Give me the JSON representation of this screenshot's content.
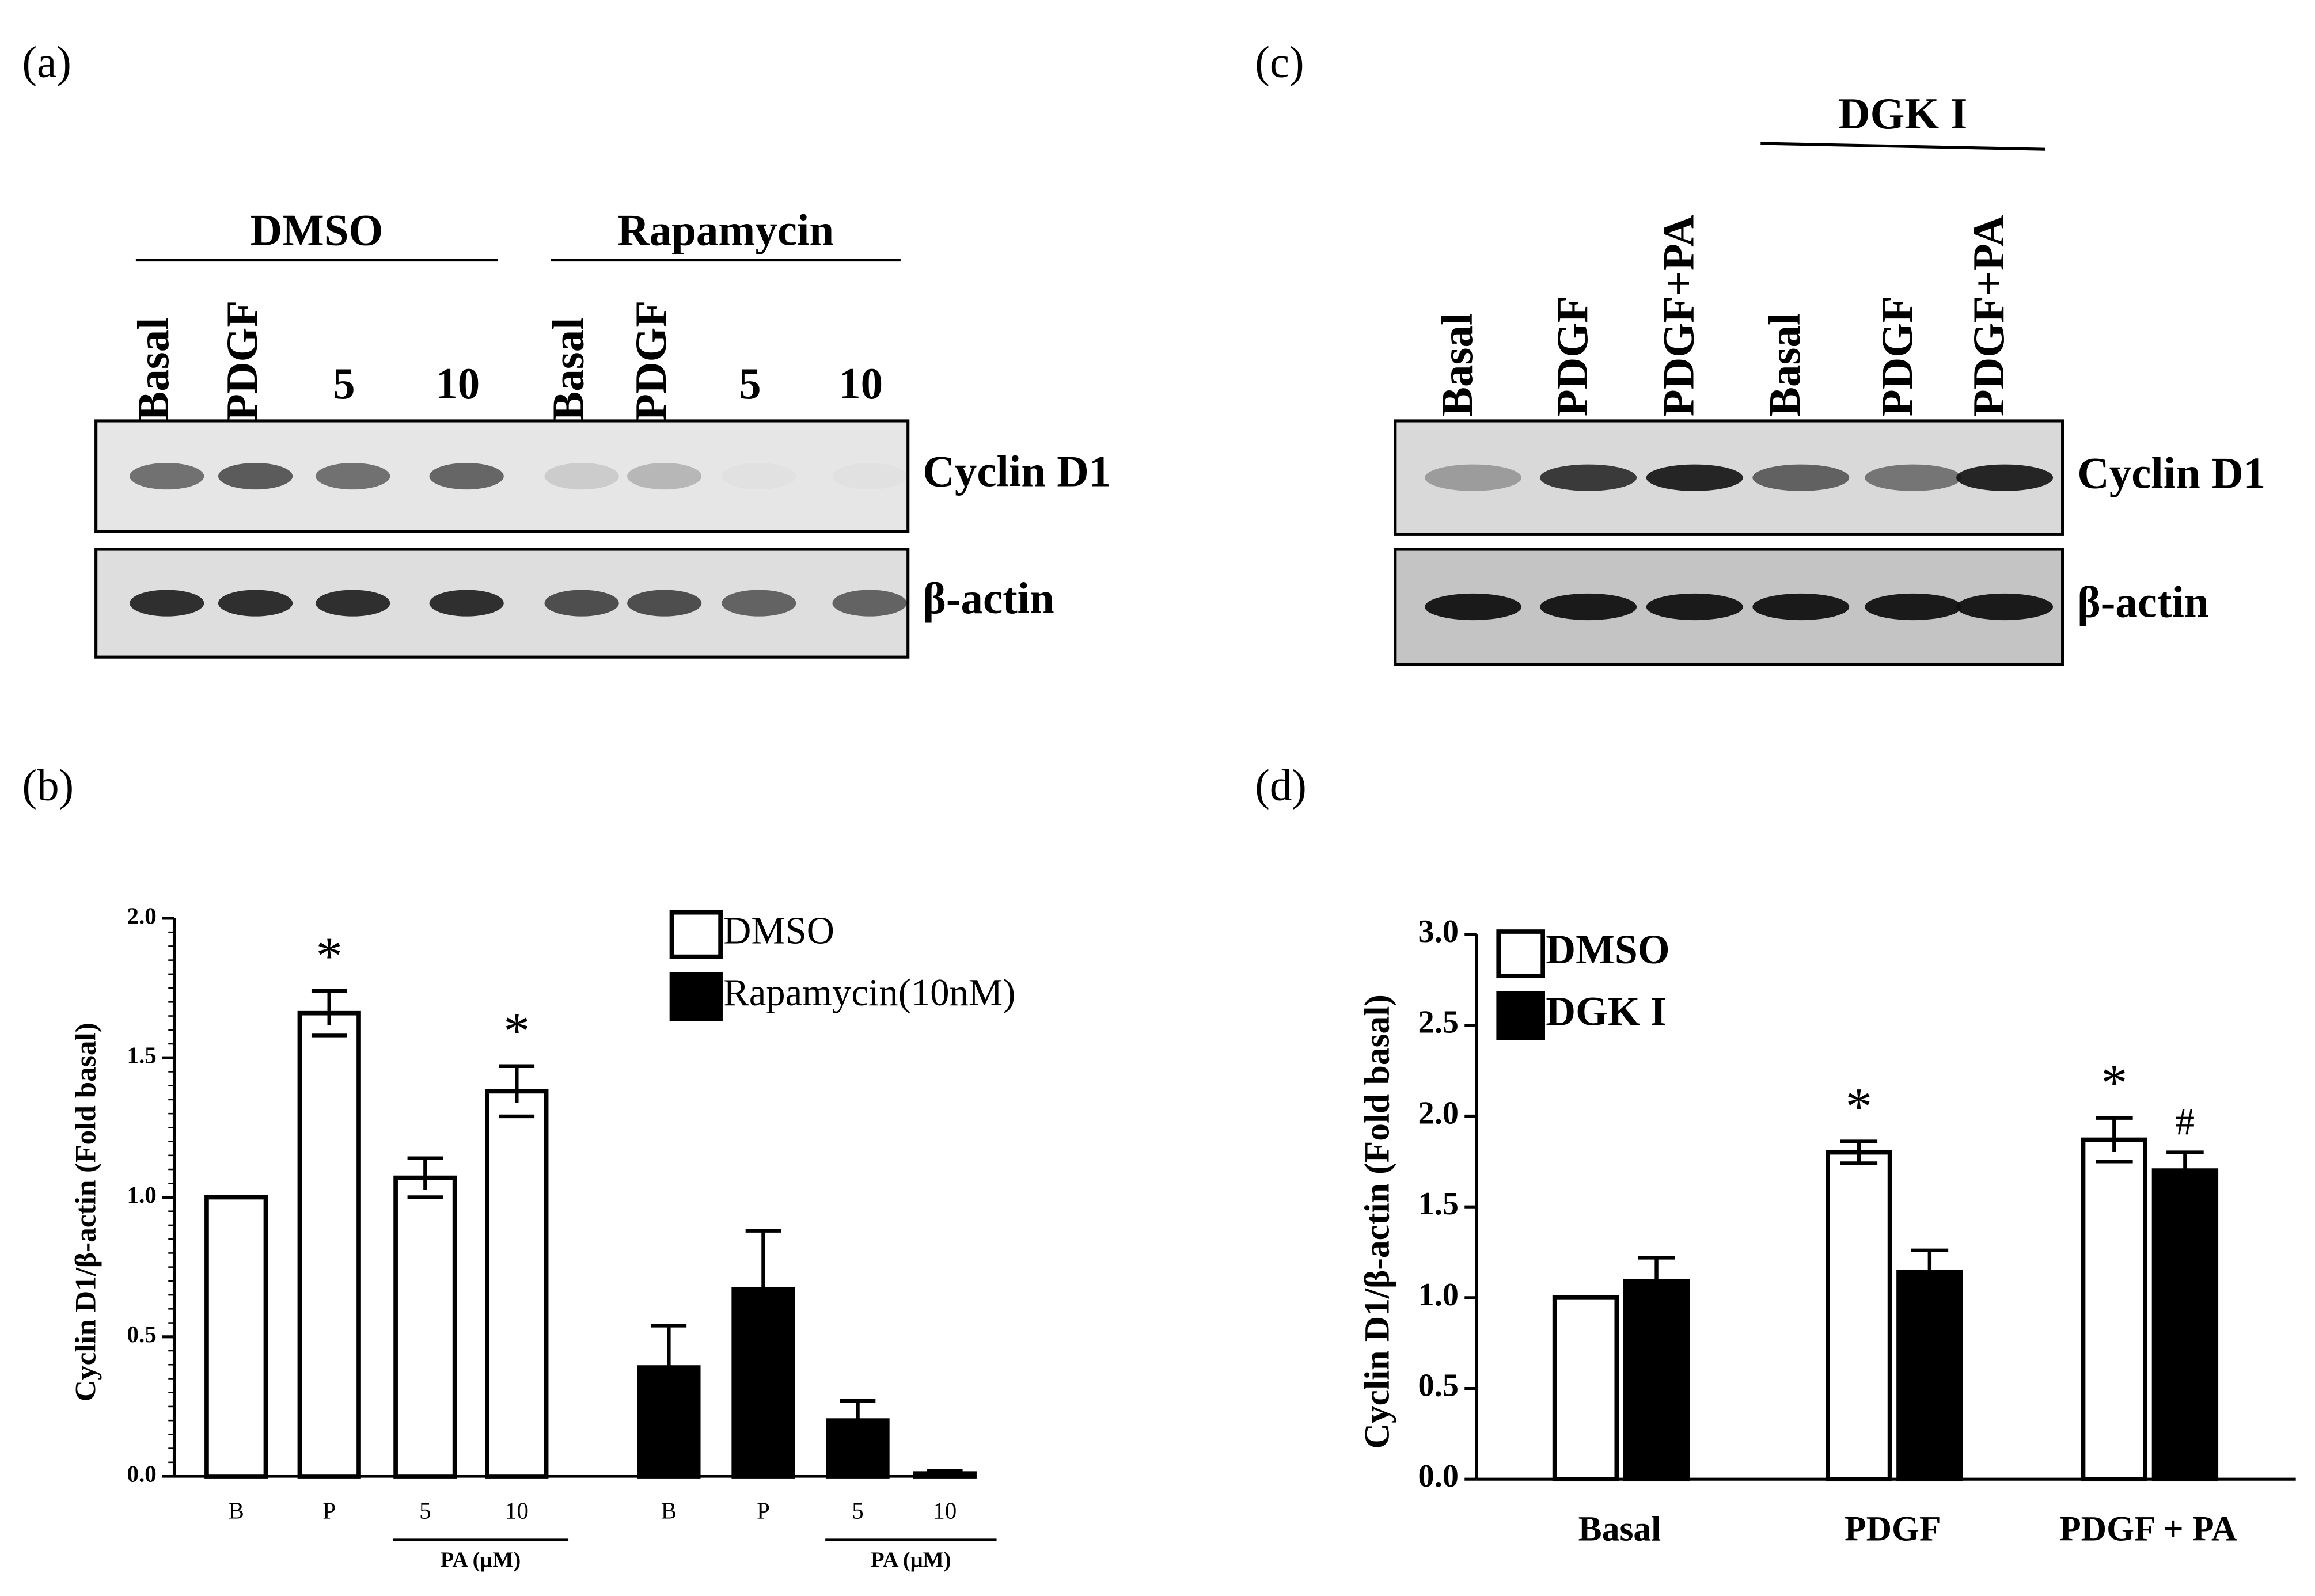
{
  "panels": [
    "(a)",
    "(b)",
    "(c)",
    "(d)"
  ],
  "blots": [
    {
      "groups": [
        {
          "label": "DMSO",
          "from": 0,
          "to": 3
        },
        {
          "label": "Rapamycin",
          "from": 4,
          "to": 7
        }
      ],
      "lanes": [
        "Basal",
        "PDGF",
        "5",
        "10",
        "Basal",
        "PDGF",
        "5",
        "10"
      ],
      "rows": [
        "Cyclin D1",
        "β-actin"
      ]
    },
    {
      "groups": [
        {
          "label": "DGK I",
          "from": 3,
          "to": 5
        }
      ],
      "lanes": [
        "Basal",
        "PDGF",
        "PDGF+PA",
        "Basal",
        "PDGF",
        "PDGF+PA"
      ],
      "rows": [
        "Cyclin D1",
        "β-actin"
      ]
    }
  ],
  "chart_data": [
    {
      "type": "bar",
      "y_label": "Cyclin D1/β-actin (Fold basal)",
      "categories": [
        "B",
        "P",
        "5",
        "10",
        "B",
        "P",
        "5",
        "10"
      ],
      "category_groups": [
        {
          "label": "PA (μM)",
          "from": 2,
          "to": 3
        },
        {
          "label": "PA (μM)",
          "from": 6,
          "to": 7
        }
      ],
      "series": [
        {
          "name": "DMSO",
          "color": "#ffffff",
          "values": [
            1.0,
            1.66,
            1.07,
            1.38,
            null,
            null,
            null,
            null
          ],
          "errors": [
            0,
            0.08,
            0.07,
            0.09,
            null,
            null,
            null,
            null
          ],
          "annotations": [
            null,
            "*",
            null,
            "*",
            null,
            null,
            null,
            null
          ]
        },
        {
          "name": "Rapamycin(10nM)",
          "color": "#000000",
          "values": [
            null,
            null,
            null,
            null,
            0.39,
            0.67,
            0.2,
            0.01
          ],
          "errors": [
            null,
            null,
            null,
            null,
            0.15,
            0.21,
            0.07,
            0.01
          ],
          "annotations": [
            null,
            null,
            null,
            null,
            null,
            null,
            null,
            null
          ]
        }
      ],
      "ylim": [
        0,
        2
      ],
      "yticks": [
        {
          "value": 0,
          "label": "0.0"
        },
        0.5,
        {
          "value": 1,
          "label": "1.0"
        },
        1.5,
        {
          "value": 2,
          "label": "2.0"
        }
      ]
    },
    {
      "type": "bar",
      "y_label": "Cyclin D1/β-actin (Fold basal)",
      "categories": [
        "Basal",
        "PDGF",
        "PDGF + PA"
      ],
      "series": [
        {
          "name": "DMSO",
          "color": "#ffffff",
          "values": [
            1.0,
            1.8,
            1.87
          ],
          "errors": [
            0,
            0.06,
            0.12
          ],
          "annotations": [
            null,
            "*",
            "*"
          ]
        },
        {
          "name": "DGK I",
          "color": "#000000",
          "values": [
            1.09,
            1.14,
            1.7
          ],
          "errors": [
            0.13,
            0.12,
            0.1
          ],
          "annotations": [
            null,
            null,
            "#"
          ]
        }
      ],
      "ylim": [
        0,
        3
      ],
      "yticks": [
        {
          "value": 0,
          "label": "0.0"
        },
        0.5,
        {
          "value": 1,
          "label": "1.0"
        },
        1.5,
        {
          "value": 2,
          "label": "2.0"
        },
        2.5,
        {
          "value": 3,
          "label": "3.0"
        }
      ]
    }
  ]
}
